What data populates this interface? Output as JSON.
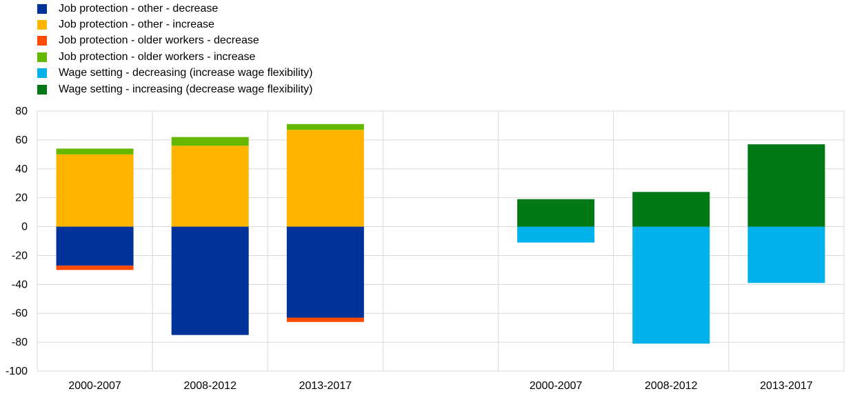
{
  "chart_data": {
    "type": "bar",
    "stacked": true,
    "title": "",
    "xlabel": "",
    "ylabel": "",
    "ylim": [
      -100,
      80
    ],
    "yticks": [
      80,
      60,
      40,
      20,
      0,
      -20,
      -40,
      -60,
      -80,
      -100
    ],
    "grid": true,
    "legend_position": "top-left",
    "categories": [
      "2000-2007",
      "2008-2012",
      "2013-2017",
      "",
      "2000-2007",
      "2008-2012",
      "2013-2017"
    ],
    "series": [
      {
        "name": "Job protection - other - decrease",
        "color": "#003299",
        "values": [
          -27,
          -75,
          -63,
          0,
          0,
          0,
          0
        ]
      },
      {
        "name": "Job protection - other - increase",
        "color": "#FFB400",
        "values": [
          50,
          56,
          67,
          0,
          0,
          0,
          0
        ]
      },
      {
        "name": "Job protection - older workers - decrease",
        "color": "#FF4B00",
        "values": [
          -3,
          0,
          -3,
          0,
          0,
          0,
          0
        ]
      },
      {
        "name": "Job protection - older workers - increase",
        "color": "#65B800",
        "values": [
          4,
          6,
          4,
          0,
          0,
          0,
          0
        ]
      },
      {
        "name": "Wage setting - decreasing (increase wage flexibility)",
        "color": "#00B1EA",
        "values": [
          0,
          0,
          0,
          0,
          -11,
          -81,
          -39
        ]
      },
      {
        "name": "Wage setting - increasing (decrease wage flexibility)",
        "color": "#007816",
        "values": [
          0,
          0,
          0,
          0,
          19,
          24,
          57
        ]
      }
    ]
  }
}
